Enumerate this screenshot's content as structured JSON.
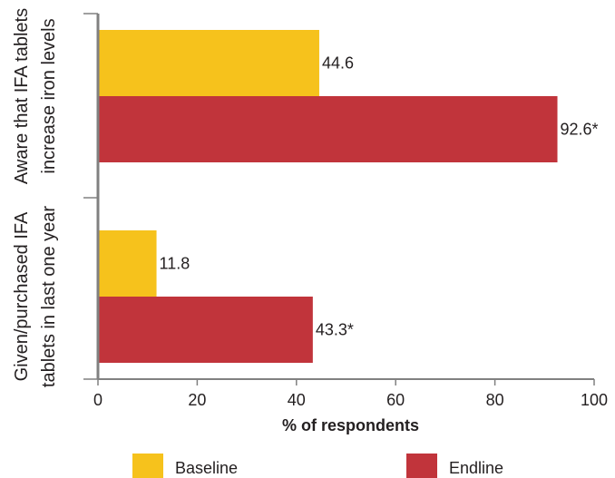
{
  "chart_data": {
    "type": "bar",
    "orientation": "horizontal",
    "categories": [
      [
        "Aware that IFA tablets",
        "increase iron levels"
      ],
      [
        "Given/purchased IFA",
        "tablets in last one year"
      ]
    ],
    "series": [
      {
        "name": "Baseline",
        "color": "#f6c21c",
        "values": [
          44.6,
          11.8
        ],
        "labels": [
          "44.6",
          "11.8"
        ]
      },
      {
        "name": "Endline",
        "color": "#c1343b",
        "values": [
          92.6,
          43.3
        ],
        "labels": [
          "92.6*",
          "43.3*"
        ]
      }
    ],
    "xlabel": "% of respondents",
    "xlim": [
      0,
      100
    ],
    "xticks": [
      0,
      20,
      40,
      60,
      80,
      100
    ],
    "grid": false,
    "legend_position": "bottom"
  }
}
